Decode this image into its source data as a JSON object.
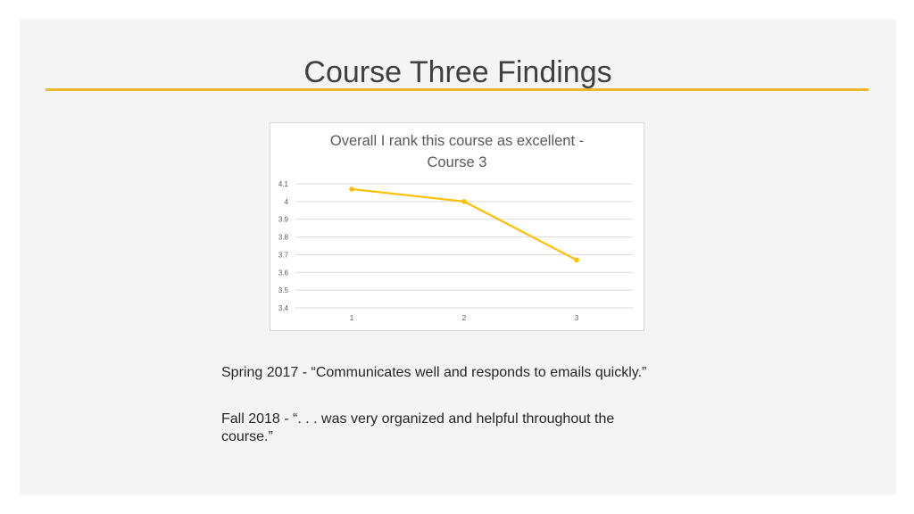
{
  "slide": {
    "title": "Course Three Findings",
    "accent_color": "#f0b62c",
    "background_color": "#f4f4f4"
  },
  "chart_data": {
    "type": "line",
    "title_lines": [
      "Overall I rank this course as excellent -",
      "Course 3"
    ],
    "categories": [
      "1",
      "2",
      "3"
    ],
    "series": [
      {
        "values": [
          4.07,
          4.0,
          3.67
        ],
        "color": "#ffc000"
      }
    ],
    "ylim": [
      3.4,
      4.1
    ],
    "yticks": [
      4.1,
      4,
      3.9,
      3.8,
      3.7,
      3.6,
      3.5,
      3.4
    ],
    "ytick_labels": [
      "4.1",
      "4",
      "3.9",
      "3.8",
      "3.7",
      "3.6",
      "3.5",
      "3.4"
    ],
    "grid": true,
    "legend": "none"
  },
  "quotes": [
    "Spring 2017 - “Communicates well and responds to emails quickly.”",
    "Fall 2018 - “. . . was very organized and helpful throughout the course.”"
  ]
}
